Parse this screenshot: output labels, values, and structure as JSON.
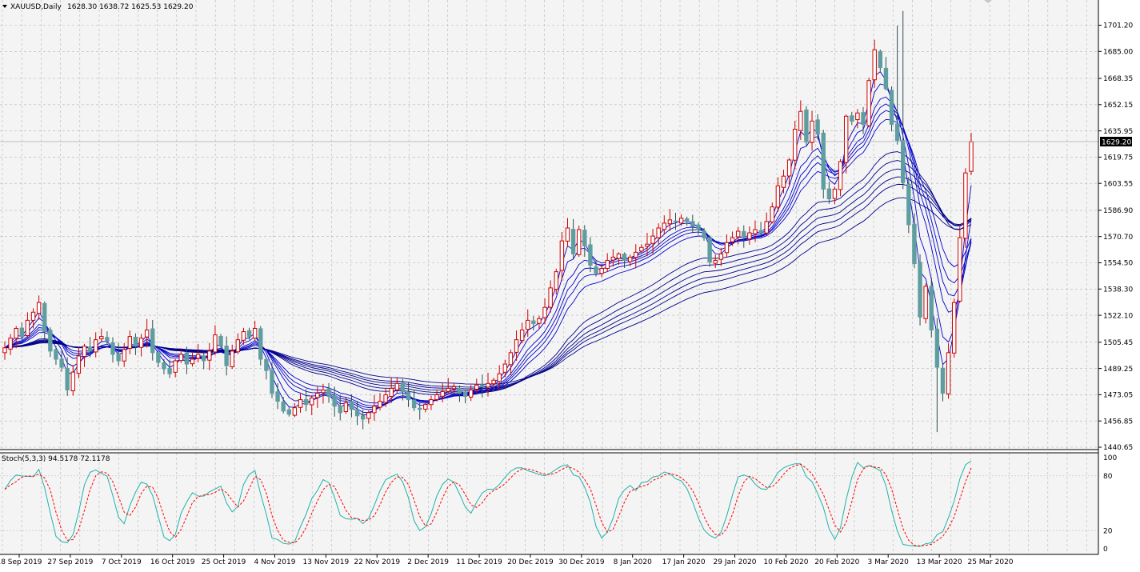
{
  "chart_data": [
    {
      "type": "candlestick",
      "symbol_label": "XAUUSD,Daily",
      "ohlc_label": "1628.30 1638.72 1625.53 1629.20",
      "current_price": "1629.20",
      "y_ticks": [
        "1701.20",
        "1685.00",
        "1668.35",
        "1652.15",
        "1635.95",
        "1619.75",
        "1603.55",
        "1586.90",
        "1570.70",
        "1554.50",
        "1538.30",
        "1522.10",
        "1505.45",
        "1489.25",
        "1473.05",
        "1456.85",
        "1440.65"
      ],
      "x_ticks": [
        "18 Sep 2019",
        "27 Sep 2019",
        "7 Oct 2019",
        "16 Oct 2019",
        "25 Oct 2019",
        "4 Nov 2019",
        "13 Nov 2019",
        "22 Nov 2019",
        "2 Dec 2019",
        "11 Dec 2019",
        "20 Dec 2019",
        "30 Dec 2019",
        "8 Jan 2020",
        "17 Jan 2020",
        "29 Jan 2020",
        "10 Feb 2020",
        "20 Feb 2020",
        "3 Mar 2020",
        "13 Mar 2020",
        "25 Mar 2020"
      ],
      "ylim": [
        1440.65,
        1701.2
      ],
      "grid": true,
      "up_color": "#cc0000",
      "down_color": "#5f9ea0",
      "ma_color": "#00008b",
      "closes": [
        1502,
        1508,
        1514,
        1509,
        1519,
        1524,
        1530,
        1512,
        1500,
        1495,
        1490,
        1476,
        1487,
        1497,
        1503,
        1500,
        1507,
        1509,
        1506,
        1498,
        1494,
        1501,
        1509,
        1503,
        1508,
        1513,
        1499,
        1493,
        1489,
        1486,
        1494,
        1498,
        1492,
        1495,
        1498,
        1494,
        1500,
        1510,
        1503,
        1491,
        1500,
        1507,
        1512,
        1509,
        1514,
        1495,
        1488,
        1474,
        1469,
        1463,
        1461,
        1465,
        1470,
        1467,
        1471,
        1474,
        1476,
        1472,
        1466,
        1462,
        1468,
        1464,
        1460,
        1458,
        1462,
        1466,
        1469,
        1473,
        1477,
        1480,
        1475,
        1470,
        1465,
        1464,
        1467,
        1470,
        1473,
        1475,
        1477,
        1478,
        1474,
        1472,
        1476,
        1479,
        1478,
        1480,
        1482,
        1486,
        1492,
        1499,
        1507,
        1513,
        1519,
        1517,
        1520,
        1527,
        1539,
        1549,
        1568,
        1576,
        1560,
        1575,
        1565,
        1553,
        1548,
        1551,
        1556,
        1558,
        1560,
        1556,
        1558,
        1561,
        1564,
        1566,
        1571,
        1576,
        1579,
        1581,
        1580,
        1582,
        1580,
        1577,
        1575,
        1570,
        1555,
        1556,
        1560,
        1567,
        1570,
        1574,
        1570,
        1573,
        1575,
        1573,
        1580,
        1589,
        1602,
        1608,
        1618,
        1637,
        1648,
        1629,
        1642,
        1634,
        1600,
        1594,
        1600,
        1617,
        1645,
        1642,
        1647,
        1640,
        1667,
        1686,
        1675,
        1662,
        1640,
        1630,
        1604,
        1578,
        1554,
        1521,
        1540,
        1513,
        1490,
        1474,
        1499,
        1530,
        1570,
        1610,
        1629.2
      ],
      "stoch": {
        "label": "Stoch(5,3,3) 94.5178 72.1178",
        "main_value": "94.5178",
        "signal_value": "72.1178",
        "k_color": "#20b2aa",
        "d_color": "#ff0000",
        "ylim": [
          0,
          100
        ],
        "y_ticks": [
          "100",
          "80",
          "20",
          "0"
        ],
        "levels": [
          20,
          80
        ]
      }
    }
  ]
}
